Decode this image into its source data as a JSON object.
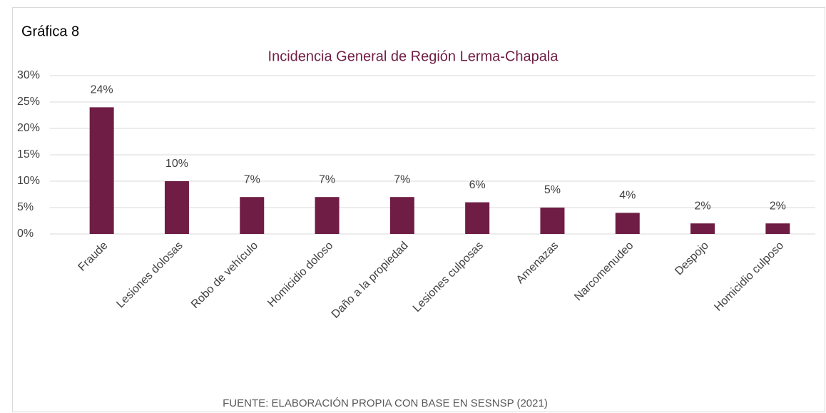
{
  "chart_data": {
    "type": "bar",
    "label": "Gráfica 8",
    "title": "Incidencia General de Región Lerma-Chapala",
    "source": "FUENTE: ELABORACIÓN PROPIA CON BASE EN SESNSP (2021)",
    "categories": [
      "Fraude",
      "Lesiones dolosas",
      "Robo de vehículo",
      "Homicidio doloso",
      "Daño a la propiedad",
      "Lesiones culposas",
      "Amenazas",
      "Narcomenudeo",
      "Despojo",
      "Homicidio culposo"
    ],
    "values": [
      24,
      10,
      7,
      7,
      7,
      6,
      5,
      4,
      2,
      2
    ],
    "value_labels": [
      "24%",
      "10%",
      "7%",
      "7%",
      "7%",
      "6%",
      "5%",
      "4%",
      "2%",
      "2%"
    ],
    "color": "#6f1d45",
    "ylim": [
      0,
      30
    ],
    "yticks": [
      {
        "value": 0,
        "label": "0%"
      },
      {
        "value": 5,
        "label": "5%"
      },
      {
        "value": 10,
        "label": "10%"
      },
      {
        "value": 15,
        "label": "15%"
      },
      {
        "value": 20,
        "label": "20%"
      },
      {
        "value": 25,
        "label": "25%"
      },
      {
        "value": 30,
        "label": "30%"
      }
    ],
    "grid": true
  }
}
